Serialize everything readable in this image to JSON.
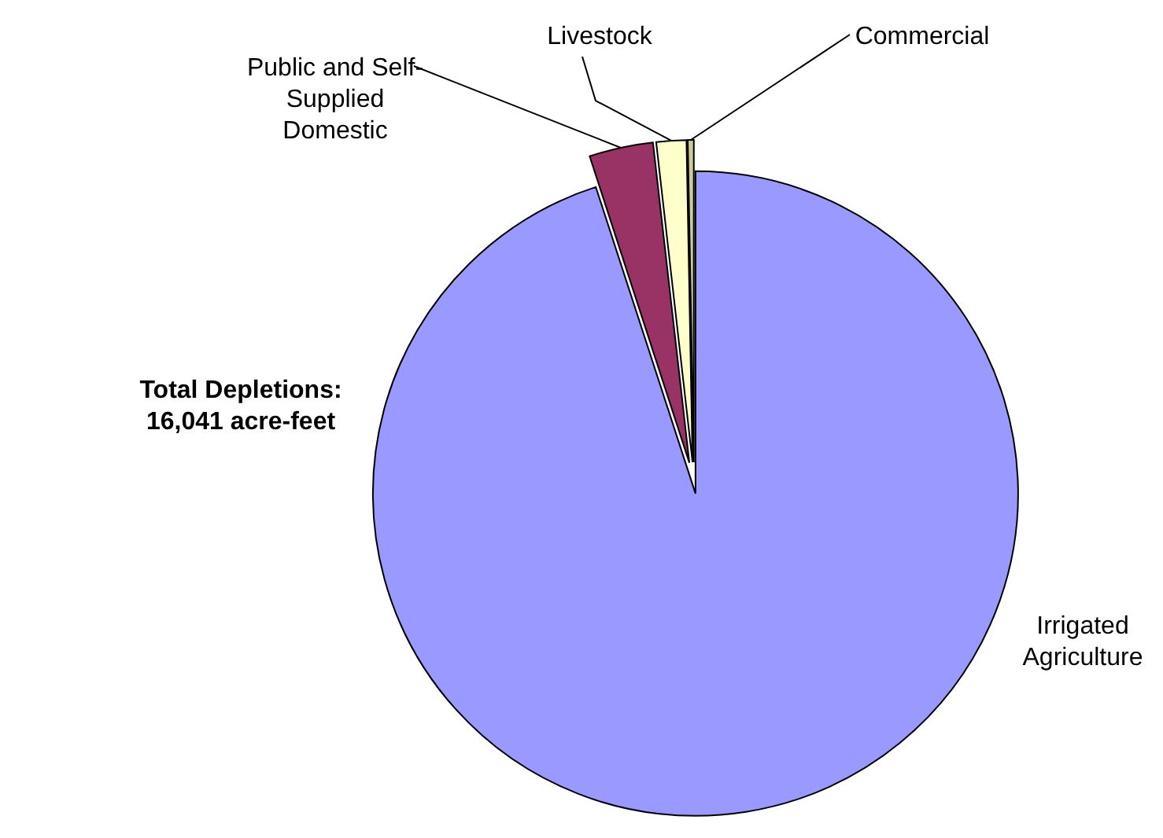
{
  "chart_data": {
    "type": "pie",
    "categories": [
      "Irrigated Agriculture",
      "Public and Self-Supplied Domestic",
      "Livestock",
      "Commercial"
    ],
    "values": [
      95.0,
      3.2,
      1.5,
      0.3
    ],
    "colors": [
      "#9999ff",
      "#993366",
      "#ffffcc",
      "#cccc99"
    ],
    "annotations": [
      "Total Depletions: 16,041 acre-feet"
    ]
  }
}
